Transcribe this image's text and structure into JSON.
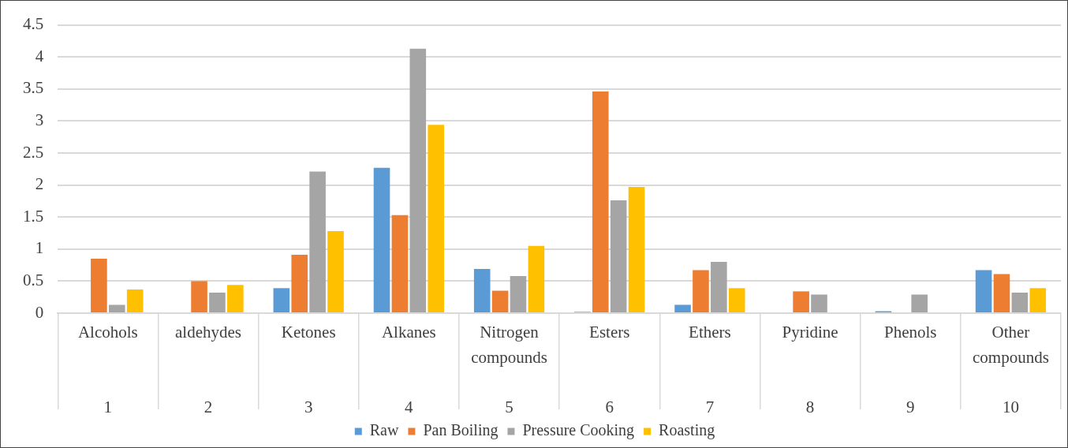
{
  "chart_data": {
    "type": "bar",
    "categories": [
      "Alcohols\n1",
      "aldehydes\n2",
      "Ketones\n3",
      "Alkanes\n4",
      "Nitrogen compounds\n5",
      "Esters\n6",
      "Ethers\n7",
      "Pyridine\n8",
      "Phenols\n9",
      "Other compounds\n10"
    ],
    "series": [
      {
        "name": "Raw",
        "color": "#5b9bd5",
        "values": [
          null,
          null,
          0.39,
          2.27,
          0.69,
          0.02,
          0.13,
          null,
          0.03,
          0.67
        ]
      },
      {
        "name": "Pan Boiling",
        "color": "#ed7d31",
        "values": [
          0.85,
          0.5,
          0.91,
          1.53,
          0.35,
          3.46,
          0.67,
          0.34,
          null,
          0.61
        ]
      },
      {
        "name": "Pressure Cooking",
        "color": "#a5a5a5",
        "values": [
          0.13,
          0.32,
          2.21,
          4.13,
          0.58,
          1.76,
          0.8,
          0.29,
          0.29,
          0.32
        ]
      },
      {
        "name": "Roasting",
        "color": "#ffc000",
        "values": [
          0.37,
          0.44,
          1.28,
          2.94,
          1.05,
          1.97,
          0.39,
          null,
          null,
          0.39
        ]
      }
    ],
    "ylim": [
      0,
      4.5
    ],
    "yticks": [
      0,
      0.5,
      1,
      1.5,
      2,
      2.5,
      3,
      3.5,
      4,
      4.5
    ],
    "grid": "y",
    "legend": "bottom"
  }
}
